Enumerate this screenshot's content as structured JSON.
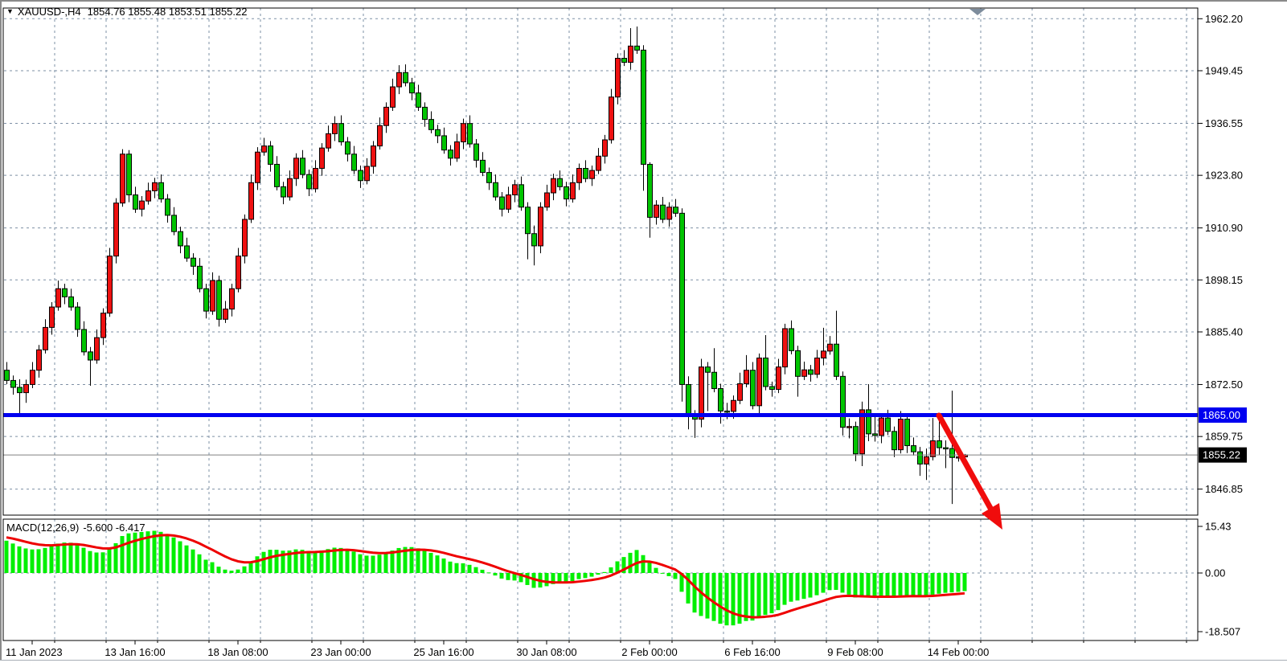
{
  "quote": {
    "symbol": "XAUUSD-,H4",
    "ohlc": "1854.76 1855.48 1853.51 1855.22",
    "open": 1854.76,
    "high": 1855.48,
    "low": 1853.51,
    "close": 1855.22
  },
  "indicator": {
    "name_params": "MACD(12,26,9)",
    "values": "-5.600 -6.417",
    "main_value": -5.6,
    "signal_value": -6.417
  },
  "price_axis": {
    "labels": [
      "1962.20",
      "1949.45",
      "1936.55",
      "1923.80",
      "1910.90",
      "1898.15",
      "1885.40",
      "1872.50",
      "1859.75",
      "1846.85"
    ],
    "values": [
      1962.2,
      1949.45,
      1936.55,
      1923.8,
      1910.9,
      1898.15,
      1885.4,
      1872.5,
      1859.75,
      1846.85
    ]
  },
  "hline": {
    "label": "1865.00",
    "value": 1865.0,
    "color": "#0000f0"
  },
  "current_price": {
    "label": "1855.22",
    "value": 1855.22,
    "badge_bg": "#000000"
  },
  "macd_axis": {
    "labels": [
      "15.43",
      "0.00",
      "-18.507"
    ],
    "values": [
      15.43,
      0.0,
      -18.507
    ]
  },
  "time_axis": [
    {
      "index": 4,
      "label": "11 Jan 2023"
    },
    {
      "index": 20,
      "label": "13 Jan 16:00"
    },
    {
      "index": 36,
      "label": "18 Jan 08:00"
    },
    {
      "index": 52,
      "label": "23 Jan 00:00"
    },
    {
      "index": 68,
      "label": "25 Jan 16:00"
    },
    {
      "index": 84,
      "label": "30 Jan 08:00"
    },
    {
      "index": 100,
      "label": "2 Feb 00:00"
    },
    {
      "index": 116,
      "label": "6 Feb 16:00"
    },
    {
      "index": 132,
      "label": "9 Feb 08:00"
    },
    {
      "index": 148,
      "label": "14 Feb 00:00"
    }
  ],
  "colors": {
    "bull": "#ee1111",
    "bear": "#00c400",
    "wick": "#000000",
    "macd_hist": "#00ef00",
    "macd_signal": "#ee0000",
    "grid": "#7e90a5",
    "axis": "#000000",
    "hline_blue": "#0000f0",
    "current_line": "#808080",
    "arrow_red": "#f00c0c",
    "marker": "#7d8c9c"
  },
  "chart_data": {
    "type": "candlestick",
    "symbol": "XAUUSD-",
    "timeframe": "H4",
    "title": "XAUUSD- H4 with MACD(12,26,9)",
    "ylim": [
      1843.0,
      1965.0
    ],
    "grid": true,
    "macd_params": {
      "fast": 12,
      "slow": 26,
      "signal": 9
    },
    "macd_scale": {
      "max": 15.43,
      "min": -18.507
    },
    "macd_seed": {
      "ema_fast": 1873.5,
      "ema_slow": 1862.5,
      "signal": 11.5
    },
    "candles": [
      [
        1876.0,
        1878.0,
        1872.6,
        1873.5
      ],
      [
        1873.5,
        1874.7,
        1870.0,
        1871.8
      ],
      [
        1871.8,
        1873.8,
        1865.3,
        1870.5
      ],
      [
        1870.5,
        1873.7,
        1868.0,
        1872.5
      ],
      [
        1872.5,
        1878.0,
        1871.6,
        1876.0
      ],
      [
        1876.0,
        1882.2,
        1874.2,
        1881.0
      ],
      [
        1881.0,
        1888.5,
        1880.1,
        1886.5
      ],
      [
        1886.5,
        1892.7,
        1884.7,
        1891.5
      ],
      [
        1891.5,
        1898.0,
        1890.6,
        1896.0
      ],
      [
        1896.0,
        1897.2,
        1892.2,
        1894.0
      ],
      [
        1894.0,
        1896.0,
        1890.6,
        1891.5
      ],
      [
        1891.5,
        1892.7,
        1884.2,
        1886.0
      ],
      [
        1886.0,
        1888.0,
        1879.6,
        1880.5
      ],
      [
        1880.5,
        1881.7,
        1872.2,
        1878.5
      ],
      [
        1878.5,
        1886.0,
        1877.6,
        1884.0
      ],
      [
        1884.0,
        1891.2,
        1882.2,
        1890.0
      ],
      [
        1890.0,
        1906.0,
        1889.1,
        1904.0
      ],
      [
        1904.0,
        1918.2,
        1902.2,
        1917.0
      ],
      [
        1917.0,
        1930.2,
        1916.1,
        1929.0
      ],
      [
        1929.0,
        1930.0,
        1917.2,
        1919.0
      ],
      [
        1919.0,
        1921.0,
        1914.6,
        1915.5
      ],
      [
        1915.5,
        1918.7,
        1913.7,
        1917.5
      ],
      [
        1917.5,
        1922.0,
        1916.6,
        1920.0
      ],
      [
        1920.0,
        1923.2,
        1918.2,
        1922.0
      ],
      [
        1922.0,
        1924.0,
        1917.1,
        1918.0
      ],
      [
        1918.0,
        1919.2,
        1912.2,
        1914.0
      ],
      [
        1914.0,
        1916.0,
        1909.1,
        1910.0
      ],
      [
        1910.0,
        1911.2,
        1904.7,
        1906.5
      ],
      [
        1906.5,
        1908.5,
        1902.6,
        1903.5
      ],
      [
        1903.5,
        1904.7,
        1899.4,
        1901.5
      ],
      [
        1901.5,
        1903.5,
        1895.1,
        1896.0
      ],
      [
        1896.0,
        1897.2,
        1888.7,
        1890.5
      ],
      [
        1890.5,
        1900.0,
        1889.6,
        1898.0
      ],
      [
        1898.0,
        1899.2,
        1886.7,
        1888.5
      ],
      [
        1888.5,
        1893.0,
        1887.6,
        1891.0
      ],
      [
        1891.0,
        1897.2,
        1889.2,
        1896.0
      ],
      [
        1896.0,
        1906.0,
        1895.1,
        1904.0
      ],
      [
        1904.0,
        1914.2,
        1902.2,
        1913.0
      ],
      [
        1913.0,
        1924.0,
        1912.1,
        1922.0
      ],
      [
        1922.0,
        1930.7,
        1920.2,
        1929.5
      ],
      [
        1929.5,
        1933.0,
        1928.6,
        1931.0
      ],
      [
        1931.0,
        1932.2,
        1924.7,
        1926.5
      ],
      [
        1926.5,
        1928.5,
        1920.1,
        1921.0
      ],
      [
        1921.0,
        1922.2,
        1916.7,
        1918.5
      ],
      [
        1918.5,
        1925.0,
        1917.6,
        1923.0
      ],
      [
        1923.0,
        1929.2,
        1921.2,
        1928.0
      ],
      [
        1928.0,
        1930.0,
        1923.1,
        1924.0
      ],
      [
        1924.0,
        1925.2,
        1918.7,
        1920.5
      ],
      [
        1920.5,
        1927.5,
        1919.6,
        1925.5
      ],
      [
        1925.5,
        1931.7,
        1923.7,
        1930.5
      ],
      [
        1930.5,
        1936.0,
        1929.6,
        1934.0
      ],
      [
        1934.0,
        1938.3,
        1932.2,
        1936.5
      ],
      [
        1936.5,
        1938.5,
        1931.1,
        1932.0
      ],
      [
        1932.0,
        1933.2,
        1927.2,
        1929.0
      ],
      [
        1929.0,
        1931.0,
        1924.1,
        1925.0
      ],
      [
        1925.0,
        1926.2,
        1920.7,
        1922.5
      ],
      [
        1922.5,
        1928.0,
        1921.6,
        1926.0
      ],
      [
        1926.0,
        1932.2,
        1924.2,
        1931.0
      ],
      [
        1931.0,
        1938.0,
        1930.1,
        1936.0
      ],
      [
        1936.0,
        1941.7,
        1934.2,
        1940.5
      ],
      [
        1940.5,
        1947.5,
        1939.6,
        1945.5
      ],
      [
        1945.5,
        1950.8,
        1943.7,
        1949.0
      ],
      [
        1949.0,
        1951.0,
        1945.6,
        1946.5
      ],
      [
        1946.5,
        1947.7,
        1942.2,
        1944.0
      ],
      [
        1944.0,
        1946.0,
        1939.6,
        1940.5
      ],
      [
        1940.5,
        1941.7,
        1935.7,
        1937.5
      ],
      [
        1937.5,
        1939.5,
        1934.1,
        1935.0
      ],
      [
        1935.0,
        1936.2,
        1931.7,
        1933.5
      ],
      [
        1933.5,
        1935.5,
        1929.1,
        1930.0
      ],
      [
        1930.0,
        1931.2,
        1926.2,
        1928.0
      ],
      [
        1928.0,
        1934.0,
        1927.1,
        1932.0
      ],
      [
        1932.0,
        1937.7,
        1930.2,
        1936.5
      ],
      [
        1936.5,
        1938.5,
        1930.6,
        1931.5
      ],
      [
        1931.5,
        1932.7,
        1925.7,
        1927.5
      ],
      [
        1927.5,
        1929.5,
        1923.6,
        1924.5
      ],
      [
        1924.5,
        1925.7,
        1920.2,
        1922.0
      ],
      [
        1922.0,
        1924.0,
        1917.6,
        1918.5
      ],
      [
        1918.5,
        1919.7,
        1913.7,
        1915.5
      ],
      [
        1915.5,
        1921.0,
        1914.6,
        1919.0
      ],
      [
        1919.0,
        1922.7,
        1917.2,
        1921.5
      ],
      [
        1921.5,
        1923.5,
        1915.1,
        1916.0
      ],
      [
        1916.0,
        1917.2,
        1903.2,
        1909.5
      ],
      [
        1909.5,
        1911.5,
        1901.7,
        1906.5
      ],
      [
        1906.5,
        1917.2,
        1904.7,
        1916.0
      ],
      [
        1916.0,
        1921.5,
        1915.1,
        1919.5
      ],
      [
        1919.5,
        1924.2,
        1917.7,
        1923.0
      ],
      [
        1923.0,
        1925.0,
        1920.1,
        1921.0
      ],
      [
        1921.0,
        1922.2,
        1916.2,
        1918.0
      ],
      [
        1918.0,
        1924.0,
        1917.1,
        1922.0
      ],
      [
        1922.0,
        1926.7,
        1920.2,
        1925.5
      ],
      [
        1925.5,
        1927.5,
        1922.1,
        1923.0
      ],
      [
        1923.0,
        1926.2,
        1921.2,
        1925.0
      ],
      [
        1925.0,
        1930.5,
        1924.1,
        1928.5
      ],
      [
        1928.5,
        1933.7,
        1926.7,
        1932.5
      ],
      [
        1932.5,
        1945.0,
        1931.6,
        1943.0
      ],
      [
        1943.0,
        1953.7,
        1941.2,
        1952.5
      ],
      [
        1952.5,
        1954.5,
        1950.6,
        1951.5
      ],
      [
        1951.5,
        1959.9,
        1949.7,
        1955.5
      ],
      [
        1955.5,
        1960.3,
        1953.6,
        1954.5
      ],
      [
        1954.5,
        1955.7,
        1920.0,
        1926.5
      ],
      [
        1926.5,
        1927.0,
        1908.5,
        1913.5
      ],
      [
        1913.5,
        1917.7,
        1911.7,
        1916.5
      ],
      [
        1916.5,
        1918.5,
        1912.1,
        1913.0
      ],
      [
        1913.0,
        1917.2,
        1911.2,
        1916.0
      ],
      [
        1916.0,
        1918.0,
        1913.6,
        1914.5
      ],
      [
        1914.5,
        1915.7,
        1868.3,
        1872.5
      ],
      [
        1872.5,
        1874.5,
        1861.5,
        1865.0
      ],
      [
        1865.0,
        1866.2,
        1859.4,
        1864.0
      ],
      [
        1864.0,
        1878.8,
        1862.0,
        1876.8
      ],
      [
        1876.8,
        1878.0,
        1866.0,
        1875.5
      ],
      [
        1875.5,
        1881.4,
        1870.6,
        1871.5
      ],
      [
        1871.5,
        1872.7,
        1862.9,
        1866.0
      ],
      [
        1866.0,
        1868.0,
        1864.0,
        1865.9
      ],
      [
        1865.9,
        1869.8,
        1864.1,
        1868.6
      ],
      [
        1868.6,
        1875.4,
        1867.7,
        1872.7
      ],
      [
        1872.7,
        1879.7,
        1871.8,
        1876.0
      ],
      [
        1876.0,
        1878.0,
        1866.4,
        1867.3
      ],
      [
        1867.3,
        1880.1,
        1865.5,
        1879.0
      ],
      [
        1879.0,
        1884.6,
        1871.1,
        1872.0
      ],
      [
        1872.0,
        1873.2,
        1869.5,
        1871.3
      ],
      [
        1871.3,
        1878.8,
        1870.4,
        1876.8
      ],
      [
        1876.8,
        1887.4,
        1875.0,
        1886.2
      ],
      [
        1886.2,
        1888.2,
        1879.9,
        1880.8
      ],
      [
        1880.8,
        1882.0,
        1869.5,
        1874.5
      ],
      [
        1874.5,
        1878.1,
        1873.6,
        1876.1
      ],
      [
        1876.1,
        1877.3,
        1873.2,
        1875.0
      ],
      [
        1875.0,
        1881.0,
        1874.1,
        1879.0
      ],
      [
        1879.0,
        1886.4,
        1877.2,
        1880.7
      ],
      [
        1880.7,
        1884.4,
        1879.8,
        1882.4
      ],
      [
        1882.4,
        1890.6,
        1873.6,
        1874.5
      ],
      [
        1874.5,
        1875.7,
        1860.0,
        1862.0
      ],
      [
        1862.0,
        1864.2,
        1859.3,
        1862.2
      ],
      [
        1862.2,
        1863.4,
        1853.7,
        1855.5
      ],
      [
        1855.5,
        1868.3,
        1852.5,
        1866.3
      ],
      [
        1866.3,
        1872.6,
        1858.6,
        1860.4
      ],
      [
        1860.4,
        1865.3,
        1858.5,
        1860.0
      ],
      [
        1860.0,
        1865.0,
        1858.1,
        1864.3
      ],
      [
        1864.3,
        1866.3,
        1860.1,
        1861.0
      ],
      [
        1861.0,
        1862.2,
        1854.7,
        1856.5
      ],
      [
        1856.5,
        1866.0,
        1855.6,
        1864.0
      ],
      [
        1864.0,
        1865.2,
        1855.7,
        1857.5
      ],
      [
        1857.5,
        1859.5,
        1855.1,
        1856.0
      ],
      [
        1856.0,
        1857.2,
        1850.1,
        1853.0
      ],
      [
        1853.0,
        1856.8,
        1849.1,
        1854.8
      ],
      [
        1854.8,
        1864.3,
        1853.9,
        1858.7
      ],
      [
        1858.7,
        1863.9,
        1855.2,
        1857.0
      ],
      [
        1857.0,
        1858.8,
        1852.0,
        1856.8
      ],
      [
        1856.8,
        1871.0,
        1843.2,
        1854.6
      ],
      [
        1854.6,
        1856.0,
        1853.6,
        1854.76
      ],
      [
        1854.76,
        1855.48,
        1853.51,
        1855.22
      ]
    ]
  }
}
